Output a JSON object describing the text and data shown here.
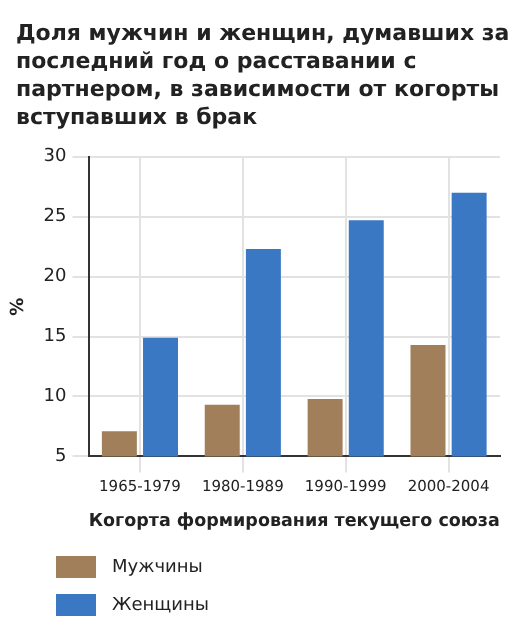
{
  "chart_data": {
    "type": "bar",
    "title": "Доля мужчин и женщин, думавших за последний год о расставании с партнером, в зависимости от когорты вступавших в брак",
    "xlabel": "Когорта формирования текущего союза",
    "ylabel": "%",
    "categories": [
      "1965-1979",
      "1980-1989",
      "1990-1999",
      "2000-2004"
    ],
    "series": [
      {
        "name": "Мужчины",
        "color": "#a07f5a",
        "values": [
          7.1,
          9.3,
          9.8,
          14.3
        ]
      },
      {
        "name": "Женщины",
        "color": "#3a78c3",
        "values": [
          14.9,
          22.3,
          24.7,
          27.0
        ]
      }
    ],
    "ylim": [
      5,
      30
    ],
    "yticks": [
      5,
      10,
      15,
      20,
      25,
      30
    ],
    "grid": true,
    "legend": "bottom"
  }
}
